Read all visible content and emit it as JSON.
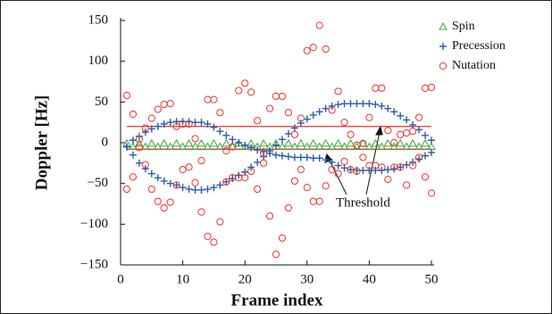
{
  "chart_data": {
    "type": "scatter",
    "xlabel": "Frame index",
    "ylabel": "Doppler [Hz]",
    "xlim": [
      0,
      50
    ],
    "ylim": [
      -150,
      150
    ],
    "xticks": [
      0,
      10,
      20,
      30,
      40,
      50
    ],
    "yticks": [
      {
        "value": -150,
        "label": "−150"
      },
      {
        "value": -100,
        "label": "−100"
      },
      {
        "value": -50,
        "label": "−50"
      },
      0,
      50,
      100,
      150
    ],
    "legend_position": "upper right outside",
    "annotation": "Threshold",
    "threshold": {
      "color": "#e8352e",
      "x": [
        1,
        50
      ],
      "values": [
        20,
        -8
      ]
    },
    "series": [
      {
        "name": "Spin",
        "color": "#3aa63a",
        "marker": "triangle",
        "x": [
          1,
          2,
          3,
          4,
          5,
          6,
          7,
          8,
          9,
          10,
          11,
          12,
          13,
          14,
          15,
          16,
          17,
          18,
          19,
          20,
          21,
          22,
          23,
          24,
          25,
          26,
          27,
          28,
          29,
          30,
          31,
          32,
          33,
          34,
          35,
          36,
          37,
          38,
          39,
          40,
          41,
          42,
          43,
          44,
          45,
          46,
          47,
          48,
          49,
          50
        ],
        "values": [
          -1,
          -5,
          -1,
          -5,
          -1,
          -5,
          -1,
          -5,
          -1,
          -5,
          -1,
          -5,
          -1,
          -5,
          -1,
          -5,
          -1,
          -5,
          -1,
          -5,
          -1,
          -5,
          -1,
          -5,
          -1,
          -5,
          -1,
          -5,
          -1,
          -5,
          -1,
          -5,
          -1,
          -5,
          -1,
          -5,
          -1,
          -5,
          -1,
          -5,
          -1,
          -5,
          -1,
          -5,
          -1,
          -5,
          -1,
          -5,
          -1,
          -5
        ]
      },
      {
        "name": "Precession",
        "color": "#2a5ea8",
        "marker": "plus",
        "x": [
          1,
          2,
          3,
          4,
          5,
          6,
          7,
          8,
          9,
          10,
          11,
          12,
          13,
          14,
          15,
          16,
          17,
          18,
          19,
          20,
          21,
          22,
          23,
          24,
          25,
          26,
          27,
          28,
          29,
          30,
          31,
          32,
          33,
          34,
          35,
          36,
          37,
          38,
          39,
          40,
          41,
          42,
          43,
          44,
          45,
          46,
          47,
          48,
          49,
          50,
          1,
          2,
          3,
          4,
          5,
          6,
          7,
          8,
          9,
          10,
          11,
          12,
          13,
          14,
          15,
          16,
          17,
          18,
          19,
          20,
          21,
          22,
          23,
          24,
          25,
          26,
          27,
          28,
          29,
          30,
          31,
          32,
          33,
          34,
          35,
          36,
          37,
          38,
          39,
          40,
          41,
          42,
          43,
          44,
          45,
          46,
          47,
          48,
          49,
          50
        ],
        "values": [
          -5,
          3,
          8,
          13,
          17,
          20,
          23,
          25,
          26,
          26,
          26,
          25,
          25,
          23,
          19,
          14,
          9,
          4,
          0,
          -3,
          -6,
          -9,
          -11,
          -13,
          -15,
          -16,
          -17,
          -18,
          -18,
          -18,
          -19,
          -19,
          -21,
          -24,
          -28,
          -31,
          -33,
          -34,
          -34,
          -34,
          -34,
          -34,
          -33,
          -32,
          -30,
          -27,
          -24,
          -20,
          -16,
          -12,
          -5,
          -15,
          -25,
          -32,
          -38,
          -43,
          -47,
          -50,
          -52,
          -55,
          -57,
          -58,
          -58,
          -57,
          -55,
          -52,
          -48,
          -44,
          -40,
          -36,
          -30,
          -24,
          -17,
          -10,
          -3,
          4,
          11,
          18,
          24,
          29,
          34,
          38,
          42,
          45,
          47,
          48,
          48,
          48,
          48,
          48,
          47,
          45,
          42,
          38,
          33,
          28,
          22,
          16,
          9,
          3
        ]
      },
      {
        "name": "Nutation",
        "color": "#e8352e",
        "marker": "circle",
        "x": [
          1,
          1,
          2,
          2,
          3,
          3,
          4,
          4,
          5,
          5,
          6,
          6,
          7,
          7,
          8,
          8,
          9,
          9,
          10,
          10,
          11,
          11,
          12,
          12,
          13,
          13,
          14,
          14,
          15,
          15,
          16,
          16,
          17,
          17,
          18,
          18,
          19,
          19,
          20,
          20,
          21,
          21,
          22,
          22,
          23,
          23,
          24,
          24,
          25,
          25,
          26,
          26,
          27,
          27,
          28,
          28,
          29,
          29,
          30,
          30,
          31,
          31,
          32,
          32,
          33,
          33,
          34,
          34,
          35,
          35,
          36,
          36,
          37,
          37,
          38,
          38,
          39,
          39,
          40,
          40,
          41,
          41,
          42,
          42,
          43,
          43,
          44,
          44,
          45,
          45,
          46,
          46,
          47,
          47,
          48,
          48,
          49,
          49,
          50,
          50
        ],
        "values": [
          58,
          -57,
          35,
          -42,
          4,
          -6,
          18,
          -27,
          30,
          -57,
          41,
          -72,
          47,
          -80,
          48,
          -73,
          20,
          -52,
          23,
          -33,
          23,
          -30,
          5,
          -49,
          -22,
          -85,
          53,
          -115,
          53,
          -122,
          37,
          -97,
          -10,
          -48,
          -5,
          -43,
          64,
          -43,
          73,
          -43,
          62,
          -35,
          27,
          -57,
          -13,
          -25,
          42,
          -90,
          57,
          -137,
          57,
          -117,
          37,
          -80,
          10,
          -47,
          30,
          -33,
          113,
          -55,
          117,
          -72,
          144,
          -72,
          115,
          -53,
          40,
          -33,
          63,
          -38,
          25,
          -23,
          10,
          -33,
          -3,
          -35,
          -1,
          -18,
          31,
          -28,
          67,
          -28,
          67,
          -30,
          15,
          -45,
          0,
          -30,
          10,
          -30,
          12,
          -52,
          14,
          -28,
          31,
          -18,
          67,
          -42,
          68,
          -62
        ]
      }
    ]
  }
}
